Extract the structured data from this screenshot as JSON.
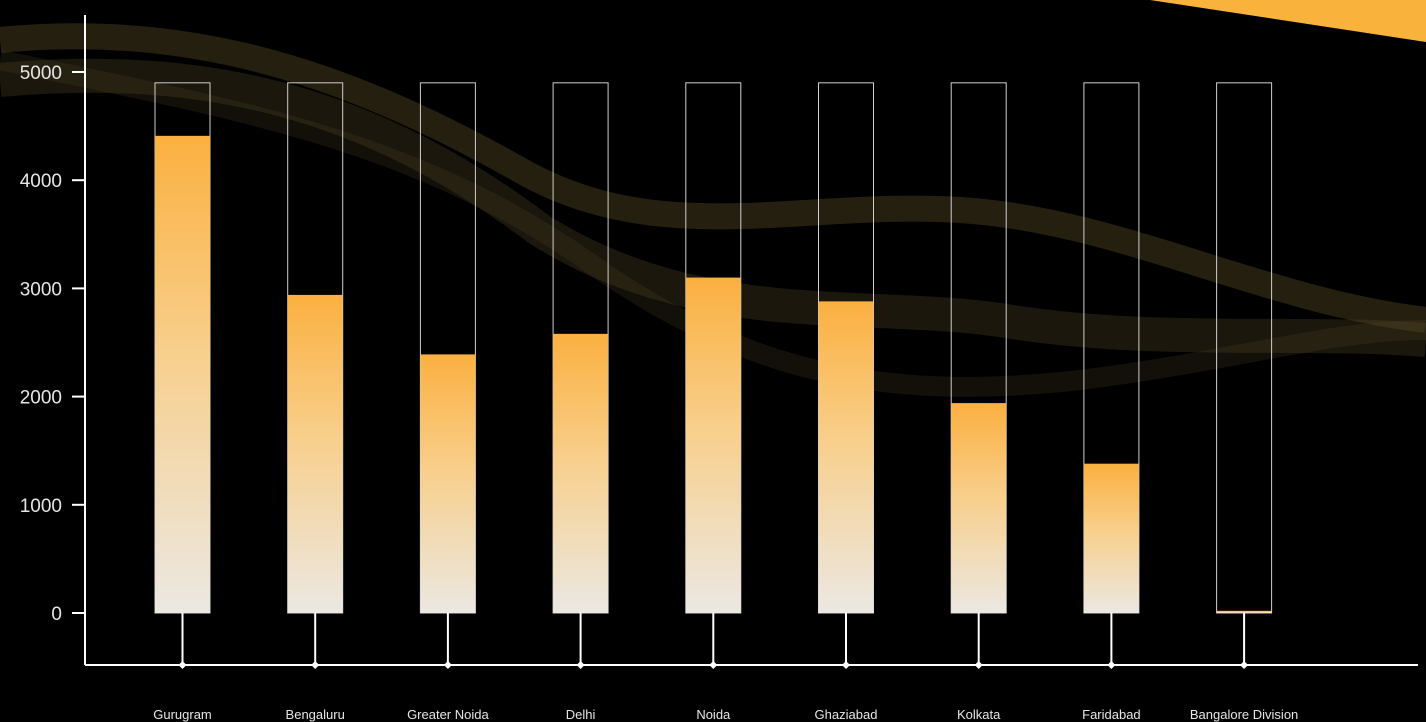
{
  "chart_data": {
    "type": "bar",
    "title": "",
    "xlabel": "",
    "ylabel": "",
    "ylim": [
      0,
      5000
    ],
    "yticks": [
      0,
      1000,
      2000,
      3000,
      4000,
      5000
    ],
    "categories": [
      "Gurugram",
      "Bengaluru",
      "Greater Noida",
      "Delhi",
      "Noida",
      "Ghaziabad",
      "Kolkata",
      "Faridabad",
      "Bangalore Division"
    ],
    "values": [
      4410,
      2940,
      2390,
      2580,
      3100,
      2880,
      1940,
      1380,
      20
    ],
    "bar_max": 4900,
    "grid": false,
    "legend": "none"
  },
  "colors": {
    "background": "#000000",
    "axis": "#ffffff",
    "bar_top": "#fbb040",
    "bar_bottom": "#ebe8e3",
    "bar_outline": "#cfcfcf",
    "accent": "#f9b23c"
  }
}
